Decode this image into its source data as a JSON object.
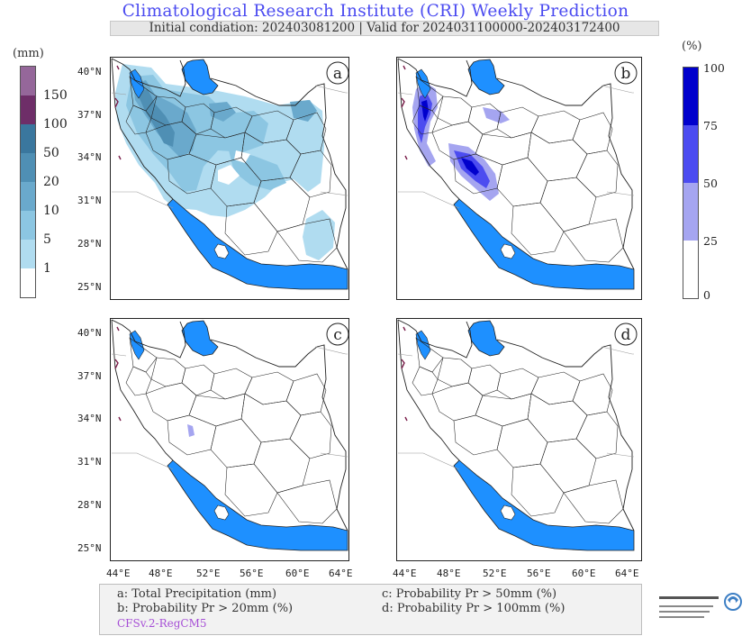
{
  "header": {
    "title": "Climatological Research Institute (CRI) Weekly Prediction",
    "subtitle": "Initial condiation: 202403081200 | Valid for 2024031100000-202403172400"
  },
  "left_colorbar": {
    "unit": "(mm)",
    "labels": [
      "150",
      "100",
      "50",
      "20",
      "10",
      "5",
      "1"
    ],
    "colors": [
      "#ffffff",
      "#b0dcf0",
      "#8cc6e2",
      "#6aa9cc",
      "#4f8fb4",
      "#3a779e",
      "#6e2e68",
      "#95679a"
    ]
  },
  "right_colorbar": {
    "unit": "(%)",
    "labels": [
      "100",
      "75",
      "50",
      "25",
      "0"
    ],
    "colors": [
      "#ffffff",
      "#a5a5f0",
      "#4c4cf0",
      "#0000cc"
    ]
  },
  "panels": [
    {
      "id": "a",
      "label": "a"
    },
    {
      "id": "b",
      "label": "b"
    },
    {
      "id": "c",
      "label": "c"
    },
    {
      "id": "d",
      "label": "d"
    }
  ],
  "lat_ticks": [
    "40°N",
    "37°N",
    "34°N",
    "31°N",
    "28°N",
    "25°N"
  ],
  "lon_ticks": [
    "44°E",
    "48°E",
    "52°E",
    "56°E",
    "60°E",
    "64°E"
  ],
  "legend": {
    "a": "a: Total Precipitation (mm)",
    "b": "b: Probability Pr > 20mm (%)",
    "c": "c: Probability Pr > 50mm (%)",
    "d": "d: Probability Pr > 100mm (%)",
    "model": "CFSv.2-RegCM5"
  },
  "colors": {
    "sea": "#1e90ff",
    "land": "#ffffff",
    "border": "#222222"
  }
}
